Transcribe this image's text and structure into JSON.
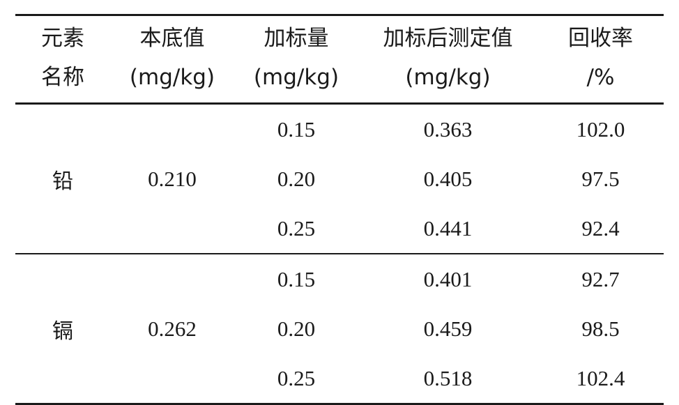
{
  "table": {
    "headers": [
      {
        "line1": "元素",
        "line2": "名称"
      },
      {
        "line1": "本底值",
        "line2": "(mg/kg)"
      },
      {
        "line1": "加标量",
        "line2": "(mg/kg)"
      },
      {
        "line1": "加标后测定值",
        "line2": "(mg/kg)"
      },
      {
        "line1": "回收率",
        "line2": "/%"
      }
    ],
    "groups": [
      {
        "element": "铅",
        "background": "0.210",
        "rows": [
          {
            "spike": "0.15",
            "measured": "0.363",
            "recovery": "102.0"
          },
          {
            "spike": "0.20",
            "measured": "0.405",
            "recovery": "97.5"
          },
          {
            "spike": "0.25",
            "measured": "0.441",
            "recovery": "92.4"
          }
        ]
      },
      {
        "element": "镉",
        "background": "0.262",
        "rows": [
          {
            "spike": "0.15",
            "measured": "0.401",
            "recovery": "92.7"
          },
          {
            "spike": "0.20",
            "measured": "0.459",
            "recovery": "98.5"
          },
          {
            "spike": "0.25",
            "measured": "0.518",
            "recovery": "102.4"
          }
        ]
      }
    ]
  }
}
